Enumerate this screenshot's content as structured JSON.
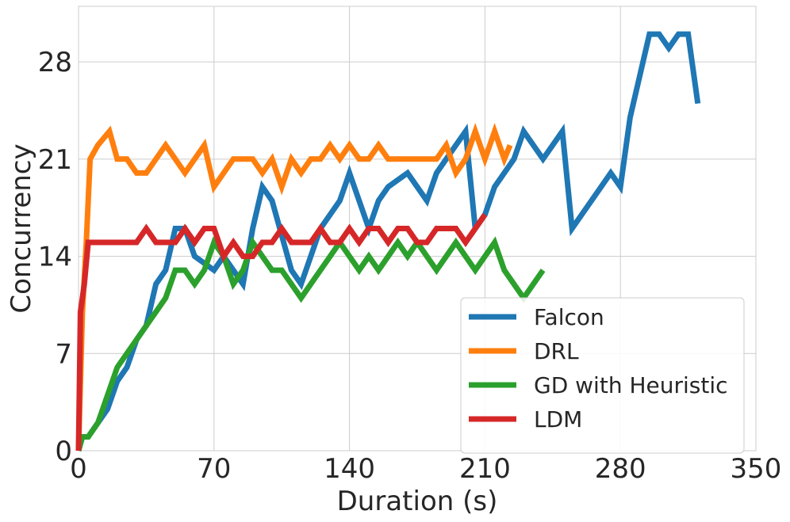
{
  "chart_data": {
    "type": "line",
    "title": "",
    "xlabel": "Duration (s)",
    "ylabel": "Concurrency",
    "xlim": [
      0,
      350
    ],
    "ylim": [
      0,
      32
    ],
    "xticks": [
      0,
      70,
      140,
      210,
      280,
      350
    ],
    "yticks": [
      0,
      7,
      14,
      21,
      28
    ],
    "grid": true,
    "legend_position": "bottom-right",
    "series": [
      {
        "name": "Falcon",
        "color": "#1f77b4",
        "points": [
          [
            0,
            0
          ],
          [
            2,
            1
          ],
          [
            5,
            1
          ],
          [
            10,
            2
          ],
          [
            15,
            3
          ],
          [
            20,
            5
          ],
          [
            25,
            6
          ],
          [
            30,
            8
          ],
          [
            35,
            9
          ],
          [
            40,
            12
          ],
          [
            45,
            13
          ],
          [
            50,
            16
          ],
          [
            55,
            16
          ],
          [
            60,
            14
          ],
          [
            70,
            13
          ],
          [
            75,
            14
          ],
          [
            85,
            12
          ],
          [
            90,
            16
          ],
          [
            95,
            19
          ],
          [
            100,
            18
          ],
          [
            110,
            13
          ],
          [
            115,
            12
          ],
          [
            120,
            14
          ],
          [
            125,
            16
          ],
          [
            135,
            18
          ],
          [
            140,
            20
          ],
          [
            145,
            18
          ],
          [
            150,
            16
          ],
          [
            155,
            18
          ],
          [
            160,
            19
          ],
          [
            170,
            20
          ],
          [
            180,
            18
          ],
          [
            185,
            20
          ],
          [
            190,
            21
          ],
          [
            200,
            23
          ],
          [
            205,
            16
          ],
          [
            210,
            17
          ],
          [
            215,
            19
          ],
          [
            225,
            21
          ],
          [
            230,
            23
          ],
          [
            240,
            21
          ],
          [
            250,
            23
          ],
          [
            255,
            16
          ],
          [
            275,
            20
          ],
          [
            280,
            19
          ],
          [
            285,
            24
          ],
          [
            295,
            30
          ],
          [
            300,
            30
          ],
          [
            305,
            29
          ],
          [
            310,
            30
          ],
          [
            315,
            30
          ],
          [
            320,
            25
          ]
        ]
      },
      {
        "name": "DRL",
        "color": "#ff7f0e",
        "points": [
          [
            0,
            0
          ],
          [
            2,
            10
          ],
          [
            4,
            15
          ],
          [
            6,
            21
          ],
          [
            10,
            22
          ],
          [
            16,
            23
          ],
          [
            20,
            21
          ],
          [
            25,
            21
          ],
          [
            30,
            20
          ],
          [
            35,
            20
          ],
          [
            45,
            22
          ],
          [
            50,
            21
          ],
          [
            55,
            20
          ],
          [
            65,
            22
          ],
          [
            70,
            19
          ],
          [
            80,
            21
          ],
          [
            90,
            21
          ],
          [
            95,
            20
          ],
          [
            100,
            21
          ],
          [
            105,
            19
          ],
          [
            110,
            21
          ],
          [
            115,
            20
          ],
          [
            120,
            21
          ],
          [
            125,
            21
          ],
          [
            130,
            22
          ],
          [
            135,
            21
          ],
          [
            140,
            22
          ],
          [
            145,
            21
          ],
          [
            150,
            21
          ],
          [
            155,
            22
          ],
          [
            160,
            21
          ],
          [
            165,
            21
          ],
          [
            175,
            21
          ],
          [
            185,
            21
          ],
          [
            190,
            22
          ],
          [
            195,
            20
          ],
          [
            200,
            21
          ],
          [
            205,
            23
          ],
          [
            210,
            21
          ],
          [
            215,
            23
          ],
          [
            220,
            21
          ],
          [
            223,
            22
          ]
        ]
      },
      {
        "name": "GD with Heuristic",
        "color": "#2ca02c",
        "points": [
          [
            0,
            0
          ],
          [
            2,
            1
          ],
          [
            5,
            1
          ],
          [
            10,
            2
          ],
          [
            15,
            4
          ],
          [
            20,
            6
          ],
          [
            25,
            7
          ],
          [
            30,
            8
          ],
          [
            35,
            9
          ],
          [
            40,
            10
          ],
          [
            45,
            11
          ],
          [
            50,
            13
          ],
          [
            55,
            13
          ],
          [
            60,
            12
          ],
          [
            65,
            13
          ],
          [
            70,
            15
          ],
          [
            75,
            14
          ],
          [
            80,
            12
          ],
          [
            85,
            13
          ],
          [
            90,
            15
          ],
          [
            95,
            14
          ],
          [
            100,
            13
          ],
          [
            105,
            13
          ],
          [
            110,
            12
          ],
          [
            115,
            11
          ],
          [
            120,
            12
          ],
          [
            125,
            13
          ],
          [
            130,
            14
          ],
          [
            135,
            15
          ],
          [
            140,
            14
          ],
          [
            145,
            13
          ],
          [
            150,
            14
          ],
          [
            155,
            13
          ],
          [
            160,
            14
          ],
          [
            165,
            15
          ],
          [
            170,
            14
          ],
          [
            175,
            15
          ],
          [
            180,
            14
          ],
          [
            185,
            13
          ],
          [
            190,
            14
          ],
          [
            195,
            15
          ],
          [
            200,
            14
          ],
          [
            205,
            13
          ],
          [
            210,
            14
          ],
          [
            215,
            15
          ],
          [
            220,
            13
          ],
          [
            230,
            11
          ],
          [
            235,
            12
          ],
          [
            240,
            13
          ]
        ]
      },
      {
        "name": "LDM",
        "color": "#d62728",
        "points": [
          [
            0,
            0
          ],
          [
            1,
            10
          ],
          [
            3,
            12
          ],
          [
            5,
            15
          ],
          [
            10,
            15
          ],
          [
            20,
            15
          ],
          [
            25,
            15
          ],
          [
            30,
            15
          ],
          [
            35,
            16
          ],
          [
            40,
            15
          ],
          [
            45,
            15
          ],
          [
            50,
            15
          ],
          [
            55,
            16
          ],
          [
            60,
            15
          ],
          [
            65,
            16
          ],
          [
            70,
            16
          ],
          [
            75,
            14
          ],
          [
            80,
            15
          ],
          [
            85,
            14
          ],
          [
            90,
            14
          ],
          [
            95,
            15
          ],
          [
            100,
            15
          ],
          [
            105,
            16
          ],
          [
            110,
            15
          ],
          [
            115,
            15
          ],
          [
            120,
            15
          ],
          [
            125,
            16
          ],
          [
            130,
            15
          ],
          [
            135,
            15
          ],
          [
            140,
            16
          ],
          [
            145,
            15
          ],
          [
            150,
            16
          ],
          [
            155,
            16
          ],
          [
            160,
            15
          ],
          [
            165,
            16
          ],
          [
            170,
            16
          ],
          [
            175,
            15
          ],
          [
            180,
            15
          ],
          [
            185,
            16
          ],
          [
            190,
            16
          ],
          [
            195,
            16
          ],
          [
            200,
            15
          ],
          [
            205,
            16
          ],
          [
            210,
            17
          ]
        ]
      }
    ]
  }
}
